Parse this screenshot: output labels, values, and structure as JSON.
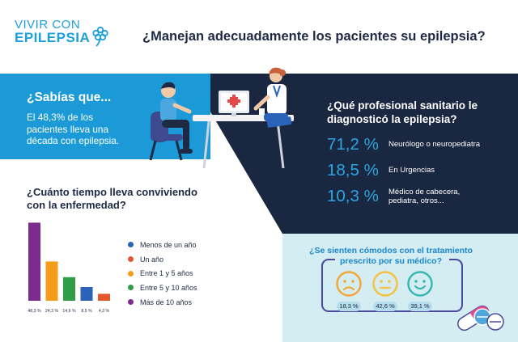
{
  "header": {
    "logo_line1": "VIVIR CON",
    "logo_line2": "EPILEPSIA",
    "title": "¿Manejan adecuadamente los pacientes su epilepsia?"
  },
  "sabias": {
    "title": "¿Sabías que...",
    "text": "El 48,3%  de los pacientes lleva una década con epilepsia."
  },
  "profesional": {
    "title": "¿Qué profesional sanitario le diagnosticó la epilepsia?",
    "rows": [
      {
        "pct": "71,2 %",
        "label": "Neurólogo o neuropediatra"
      },
      {
        "pct": "18,5 %",
        "label": "En Urgencias"
      },
      {
        "pct": "10,3 %",
        "label": "Médico de cabecera, pediatra, otros..."
      }
    ]
  },
  "tiempo": {
    "title": "¿Cuánto tiempo lleva conviviendo con la enfermedad?"
  },
  "chart_data": {
    "type": "bar",
    "title": "¿Cuánto tiempo lleva conviviendo con la enfermedad?",
    "categories": [
      "Más de 10 años",
      "Entre 1 y 5 años",
      "Entre 5 y 10 años",
      "Menos de un año",
      "Un año"
    ],
    "values": [
      48.3,
      24.3,
      14.6,
      8.5,
      4.3
    ],
    "value_labels": [
      "48,3 %",
      "24,3 %",
      "14,6 %",
      "8,5 %",
      "4,3 %"
    ],
    "colors": [
      "#7b2c8e",
      "#f59c1a",
      "#2f9e47",
      "#2b63b8",
      "#e4572e"
    ],
    "ylim": [
      0,
      50
    ],
    "legend": [
      {
        "label": "Menos de un año",
        "color": "#2b63b8"
      },
      {
        "label": "Un año",
        "color": "#e4572e"
      },
      {
        "label": "Entre 1 y 5 años",
        "color": "#f59c1a"
      },
      {
        "label": "Entre 5 y 10 años",
        "color": "#2f9e47"
      },
      {
        "label": "Más de 10 años",
        "color": "#7b2c8e"
      }
    ]
  },
  "comodos": {
    "title": "¿Se sienten cómodos con el tratamiento prescrito por su médico?",
    "faces": [
      {
        "icon": "sad-face-icon",
        "pct": "18,3 %",
        "color": "#f3a63a"
      },
      {
        "icon": "neutral-face-icon",
        "pct": "42,6 %",
        "color": "#f5c242"
      },
      {
        "icon": "happy-face-icon",
        "pct": "39,1 %",
        "color": "#37b8b0"
      }
    ]
  },
  "colors": {
    "navy": "#1a2740",
    "blue": "#1b9ad7",
    "light": "#d4edf3",
    "pct_blue": "#2ba6e1"
  }
}
